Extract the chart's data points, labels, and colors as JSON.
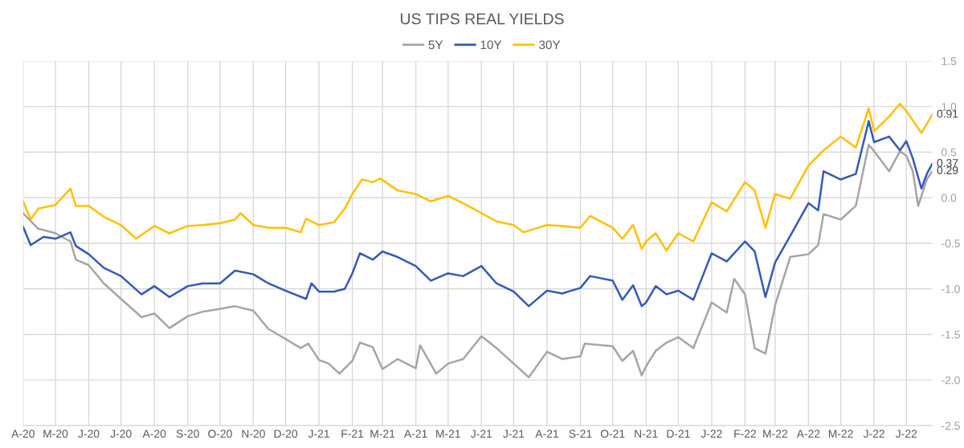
{
  "chart_data": {
    "type": "line",
    "title": "US TIPS REAL YIELDS",
    "series": [
      {
        "name": "5Y",
        "color": "#a5a5a5",
        "x": [
          "2020-04-01",
          "2020-04-15",
          "2020-05-01",
          "2020-05-15",
          "2020-05-20",
          "2020-06-01",
          "2020-06-15",
          "2020-07-01",
          "2020-07-20",
          "2020-08-01",
          "2020-08-15",
          "2020-09-01",
          "2020-09-15",
          "2020-10-01",
          "2020-10-15",
          "2020-11-01",
          "2020-11-15",
          "2020-12-01",
          "2020-12-15",
          "2020-12-22",
          "2021-01-01",
          "2021-01-10",
          "2021-01-20",
          "2021-02-01",
          "2021-02-08",
          "2021-02-20",
          "2021-03-01",
          "2021-03-15",
          "2021-04-01",
          "2021-04-05",
          "2021-04-20",
          "2021-05-01",
          "2021-05-15",
          "2021-06-01",
          "2021-06-15",
          "2021-07-01",
          "2021-07-15",
          "2021-08-01",
          "2021-08-15",
          "2021-09-01",
          "2021-09-05",
          "2021-10-01",
          "2021-10-10",
          "2021-10-20",
          "2021-10-28",
          "2021-11-01",
          "2021-11-10",
          "2021-11-20",
          "2021-12-01",
          "2021-12-15",
          "2022-01-01",
          "2022-01-15",
          "2022-01-22",
          "2022-02-01",
          "2022-02-10",
          "2022-02-20",
          "2022-03-01",
          "2022-03-15",
          "2022-04-01",
          "2022-04-10",
          "2022-04-15",
          "2022-05-01",
          "2022-05-15",
          "2022-05-27",
          "2022-06-01",
          "2022-06-15",
          "2022-06-25",
          "2022-07-01",
          "2022-07-07",
          "2022-07-12",
          "2022-07-20",
          "2022-07-25"
        ],
        "values": [
          -0.17,
          -0.34,
          -0.39,
          -0.48,
          -0.68,
          -0.74,
          -0.94,
          -1.11,
          -1.31,
          -1.27,
          -1.43,
          -1.3,
          -1.25,
          -1.22,
          -1.19,
          -1.24,
          -1.44,
          -1.55,
          -1.65,
          -1.6,
          -1.78,
          -1.82,
          -1.93,
          -1.79,
          -1.59,
          -1.64,
          -1.88,
          -1.77,
          -1.87,
          -1.62,
          -1.93,
          -1.82,
          -1.77,
          -1.52,
          -1.65,
          -1.82,
          -1.97,
          -1.69,
          -1.77,
          -1.74,
          -1.6,
          -1.63,
          -1.79,
          -1.68,
          -1.95,
          -1.85,
          -1.68,
          -1.59,
          -1.53,
          -1.65,
          -1.15,
          -1.26,
          -0.89,
          -1.06,
          -1.65,
          -1.71,
          -1.18,
          -0.65,
          -0.62,
          -0.52,
          -0.18,
          -0.24,
          -0.09,
          0.58,
          0.51,
          0.29,
          0.51,
          0.46,
          0.29,
          -0.09,
          0.2,
          0.29
        ]
      },
      {
        "name": "10Y",
        "color": "#3559b5",
        "x": [
          "2020-04-01",
          "2020-04-08",
          "2020-04-20",
          "2020-05-01",
          "2020-05-15",
          "2020-05-20",
          "2020-06-01",
          "2020-06-15",
          "2020-07-01",
          "2020-07-20",
          "2020-08-01",
          "2020-08-15",
          "2020-09-01",
          "2020-09-15",
          "2020-10-01",
          "2020-10-15",
          "2020-11-01",
          "2020-11-15",
          "2020-12-01",
          "2020-12-20",
          "2020-12-25",
          "2021-01-01",
          "2021-01-15",
          "2021-01-25",
          "2021-02-01",
          "2021-02-08",
          "2021-02-20",
          "2021-03-01",
          "2021-03-15",
          "2021-04-01",
          "2021-04-15",
          "2021-05-01",
          "2021-05-15",
          "2021-06-01",
          "2021-06-15",
          "2021-07-01",
          "2021-07-15",
          "2021-08-01",
          "2021-08-15",
          "2021-09-01",
          "2021-09-10",
          "2021-10-01",
          "2021-10-10",
          "2021-10-20",
          "2021-10-28",
          "2021-11-01",
          "2021-11-10",
          "2021-11-20",
          "2021-12-01",
          "2021-12-15",
          "2022-01-01",
          "2022-01-15",
          "2022-02-01",
          "2022-02-10",
          "2022-02-20",
          "2022-03-01",
          "2022-03-15",
          "2022-04-01",
          "2022-04-10",
          "2022-04-15",
          "2022-05-01",
          "2022-05-15",
          "2022-05-27",
          "2022-06-01",
          "2022-06-15",
          "2022-06-25",
          "2022-07-01",
          "2022-07-07",
          "2022-07-15",
          "2022-07-20",
          "2022-07-25"
        ],
        "values": [
          -0.32,
          -0.52,
          -0.43,
          -0.45,
          -0.38,
          -0.53,
          -0.62,
          -0.77,
          -0.86,
          -1.06,
          -0.97,
          -1.09,
          -0.97,
          -0.94,
          -0.94,
          -0.8,
          -0.84,
          -0.94,
          -1.02,
          -1.11,
          -0.94,
          -1.03,
          -1.03,
          -1.0,
          -0.83,
          -0.61,
          -0.68,
          -0.59,
          -0.65,
          -0.75,
          -0.91,
          -0.83,
          -0.86,
          -0.75,
          -0.94,
          -1.03,
          -1.19,
          -1.02,
          -1.05,
          -0.99,
          -0.86,
          -0.91,
          -1.12,
          -0.96,
          -1.19,
          -1.15,
          -0.97,
          -1.06,
          -1.02,
          -1.12,
          -0.61,
          -0.7,
          -0.48,
          -0.59,
          -1.09,
          -0.71,
          -0.42,
          -0.06,
          -0.14,
          0.29,
          0.2,
          0.26,
          0.84,
          0.61,
          0.67,
          0.52,
          0.62,
          0.43,
          0.1,
          0.26,
          0.37
        ]
      },
      {
        "name": "30Y",
        "color": "#ffc000",
        "x": [
          "2020-04-01",
          "2020-04-08",
          "2020-04-15",
          "2020-05-01",
          "2020-05-15",
          "2020-05-20",
          "2020-06-01",
          "2020-06-15",
          "2020-07-01",
          "2020-07-15",
          "2020-08-01",
          "2020-08-15",
          "2020-09-01",
          "2020-09-15",
          "2020-10-01",
          "2020-10-15",
          "2020-10-20",
          "2020-11-01",
          "2020-11-15",
          "2020-12-01",
          "2020-12-15",
          "2020-12-20",
          "2021-01-01",
          "2021-01-15",
          "2021-01-25",
          "2021-02-01",
          "2021-02-10",
          "2021-02-20",
          "2021-02-27",
          "2021-03-15",
          "2021-04-01",
          "2021-04-15",
          "2021-05-01",
          "2021-05-15",
          "2021-06-01",
          "2021-06-15",
          "2021-07-01",
          "2021-07-10",
          "2021-08-01",
          "2021-08-15",
          "2021-09-01",
          "2021-09-10",
          "2021-10-01",
          "2021-10-10",
          "2021-10-20",
          "2021-10-28",
          "2021-11-01",
          "2021-11-10",
          "2021-11-20",
          "2021-12-01",
          "2021-12-15",
          "2022-01-01",
          "2022-01-15",
          "2022-02-01",
          "2022-02-10",
          "2022-02-20",
          "2022-03-01",
          "2022-03-15",
          "2022-04-01",
          "2022-04-15",
          "2022-05-01",
          "2022-05-15",
          "2022-05-27",
          "2022-06-01",
          "2022-06-15",
          "2022-06-25",
          "2022-07-01",
          "2022-07-15",
          "2022-07-25"
        ],
        "values": [
          -0.04,
          -0.24,
          -0.12,
          -0.08,
          0.1,
          -0.09,
          -0.09,
          -0.21,
          -0.3,
          -0.45,
          -0.31,
          -0.39,
          -0.31,
          -0.3,
          -0.28,
          -0.24,
          -0.17,
          -0.3,
          -0.33,
          -0.33,
          -0.38,
          -0.23,
          -0.3,
          -0.27,
          -0.12,
          0.04,
          0.2,
          0.17,
          0.21,
          0.08,
          0.04,
          -0.04,
          0.02,
          -0.06,
          -0.17,
          -0.26,
          -0.3,
          -0.38,
          -0.3,
          -0.31,
          -0.33,
          -0.2,
          -0.33,
          -0.45,
          -0.3,
          -0.56,
          -0.48,
          -0.39,
          -0.58,
          -0.39,
          -0.48,
          -0.05,
          -0.15,
          0.17,
          0.08,
          -0.33,
          0.04,
          -0.01,
          0.35,
          0.52,
          0.67,
          0.55,
          0.98,
          0.73,
          0.89,
          1.03,
          0.95,
          0.71,
          0.91
        ]
      }
    ],
    "xlim": [
      "2020-04-01",
      "2022-07-25"
    ],
    "xticks": [
      {
        "value": "2020-04-01",
        "label": "A-20"
      },
      {
        "value": "2020-05-01",
        "label": "M-20"
      },
      {
        "value": "2020-06-01",
        "label": "J-20"
      },
      {
        "value": "2020-07-01",
        "label": "J-20"
      },
      {
        "value": "2020-08-01",
        "label": "A-20"
      },
      {
        "value": "2020-09-01",
        "label": "S-20"
      },
      {
        "value": "2020-10-01",
        "label": "O-20"
      },
      {
        "value": "2020-11-01",
        "label": "N-20"
      },
      {
        "value": "2020-12-01",
        "label": "D-20"
      },
      {
        "value": "2021-01-01",
        "label": "J-21"
      },
      {
        "value": "2021-02-01",
        "label": "F-21"
      },
      {
        "value": "2021-03-01",
        "label": "M-21"
      },
      {
        "value": "2021-04-01",
        "label": "A-21"
      },
      {
        "value": "2021-05-01",
        "label": "M-21"
      },
      {
        "value": "2021-06-01",
        "label": "J-21"
      },
      {
        "value": "2021-07-01",
        "label": "J-21"
      },
      {
        "value": "2021-08-01",
        "label": "A-21"
      },
      {
        "value": "2021-09-01",
        "label": "S-21"
      },
      {
        "value": "2021-10-01",
        "label": "O-21"
      },
      {
        "value": "2021-11-01",
        "label": "N-21"
      },
      {
        "value": "2021-12-01",
        "label": "D-21"
      },
      {
        "value": "2022-01-01",
        "label": "J-22"
      },
      {
        "value": "2022-02-01",
        "label": "F-22"
      },
      {
        "value": "2022-03-01",
        "label": "M-22"
      },
      {
        "value": "2022-04-01",
        "label": "A-22"
      },
      {
        "value": "2022-05-01",
        "label": "M-22"
      },
      {
        "value": "2022-06-01",
        "label": "J-22"
      },
      {
        "value": "2022-07-01",
        "label": "J-22"
      }
    ],
    "ylim": [
      -2.5,
      1.5
    ],
    "yticks": [
      -2.5,
      {
        "value": -2,
        "label": "-2.0"
      },
      -1.5,
      {
        "value": -1,
        "label": "-1.0"
      },
      -0.5,
      {
        "value": 0,
        "label": "0.0"
      },
      0.5,
      {
        "value": 1,
        "label": "1.0"
      },
      1.5
    ],
    "annotations": [
      {
        "text": "0.91",
        "x": "2022-07-25",
        "y": 0.91
      },
      {
        "text": "0.37",
        "x": "2022-07-25",
        "y": 0.37
      },
      {
        "text": "0.29",
        "x": "2022-07-25",
        "y": 0.29
      }
    ],
    "grid": true,
    "legend": "top",
    "marker": "none",
    "line_style": "solid"
  }
}
